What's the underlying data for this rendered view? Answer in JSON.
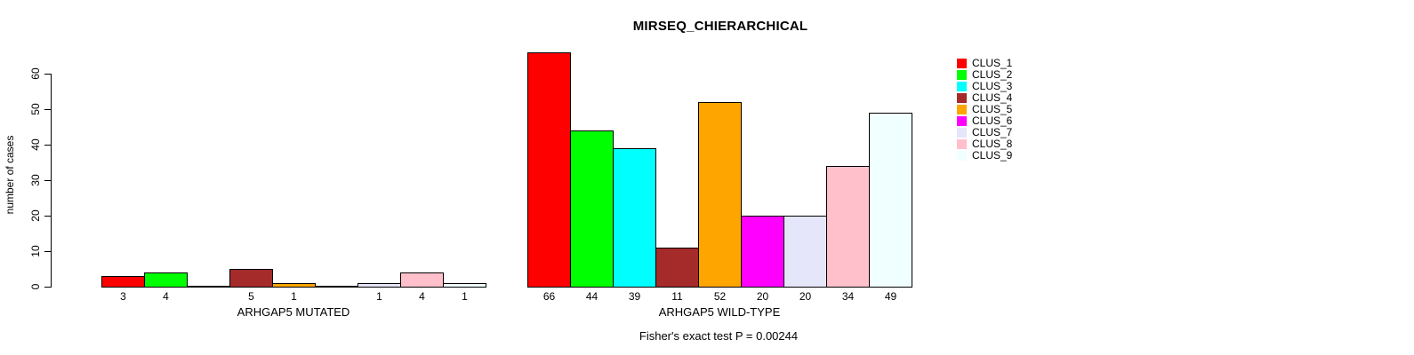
{
  "title": "MIRSEQ_CHIERARCHICAL",
  "footer": "Fisher's exact test P = 0.00244",
  "y_axis": {
    "label": "number of cases",
    "tick_labels": [
      "0",
      "10",
      "20",
      "30",
      "40",
      "50",
      "60"
    ]
  },
  "x_axis": {
    "group_labels": [
      "ARHGAP5 MUTATED",
      "ARHGAP5 WILD-TYPE"
    ]
  },
  "legend": {
    "entries": [
      "CLUS_1",
      "CLUS_2",
      "CLUS_3",
      "CLUS_4",
      "CLUS_5",
      "CLUS_6",
      "CLUS_7",
      "CLUS_8",
      "CLUS_9"
    ]
  },
  "chart_data": {
    "type": "bar",
    "title": "MIRSEQ_CHIERARCHICAL",
    "xlabel": "",
    "ylabel": "number of cases",
    "ylim": [
      0,
      66
    ],
    "yticks": [
      0,
      10,
      20,
      30,
      40,
      50,
      60
    ],
    "grid": false,
    "legend_position": "right",
    "annotation": "Fisher's exact test P = 0.00244",
    "categories": [
      "ARHGAP5 MUTATED",
      "ARHGAP5 WILD-TYPE"
    ],
    "series": [
      {
        "name": "CLUS_1",
        "color": "#FF0000",
        "values": [
          3,
          66
        ]
      },
      {
        "name": "CLUS_2",
        "color": "#00FF00",
        "values": [
          4,
          44
        ]
      },
      {
        "name": "CLUS_3",
        "color": "#00FFFF",
        "values": [
          0,
          39
        ]
      },
      {
        "name": "CLUS_4",
        "color": "#A52A2A",
        "values": [
          5,
          11
        ]
      },
      {
        "name": "CLUS_5",
        "color": "#FFA500",
        "values": [
          1,
          52
        ]
      },
      {
        "name": "CLUS_6",
        "color": "#FF00FF",
        "values": [
          0,
          20
        ]
      },
      {
        "name": "CLUS_7",
        "color": "#E6E6FA",
        "values": [
          1,
          20
        ]
      },
      {
        "name": "CLUS_8",
        "color": "#FFC0CB",
        "values": [
          4,
          34
        ]
      },
      {
        "name": "CLUS_9",
        "color": "#F0FFFF",
        "values": [
          1,
          49
        ]
      }
    ],
    "zero_value_bars_drawn_as_flat_line": true,
    "bar_value_labels_shown": "non-zero values under each bar"
  }
}
